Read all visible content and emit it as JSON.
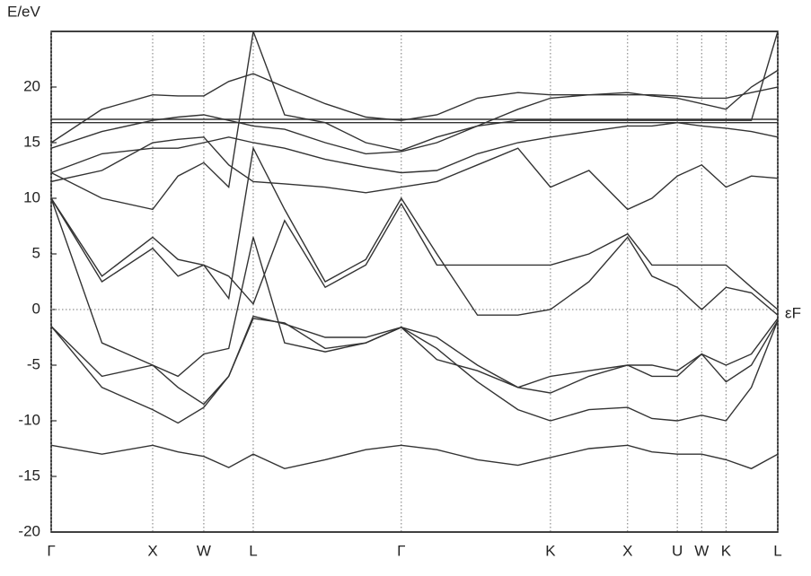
{
  "chart_data": {
    "type": "line",
    "y_label": "E/eV",
    "fermi_label": "εF",
    "fermi_level": 0,
    "x": [
      0,
      0.5,
      1,
      1.25,
      1.504,
      1.75,
      1.991,
      2.3,
      2.7,
      3.1,
      3.45,
      3.8,
      4.2,
      4.6,
      4.92,
      5.3,
      5.68,
      5.92,
      6.17,
      6.41,
      6.65,
      6.9,
      7.16
    ],
    "xlim": [
      0,
      7.16
    ],
    "xticks": [
      {
        "value": 0,
        "label": "Γ"
      },
      {
        "value": 1,
        "label": "X"
      },
      {
        "value": 1.504,
        "label": "W"
      },
      {
        "value": 1.991,
        "label": "L"
      },
      {
        "value": 3.45,
        "label": "Γ"
      },
      {
        "value": 4.92,
        "label": "K"
      },
      {
        "value": 5.68,
        "label": "X"
      },
      {
        "value": 6.17,
        "label": "U"
      },
      {
        "value": 6.41,
        "label": "W"
      },
      {
        "value": 6.65,
        "label": "K"
      },
      {
        "value": 7.16,
        "label": "L"
      }
    ],
    "ylim": [
      -20,
      25
    ],
    "yticks": [
      -20,
      -15,
      -10,
      -5,
      0,
      5,
      10,
      15,
      20
    ],
    "grid": true,
    "series": [
      {
        "color": "#333333",
        "values": [
          -12.2,
          -13,
          -12.2,
          -12.8,
          -13.2,
          -14.2,
          -13,
          -14.3,
          -13.5,
          -12.6,
          -12.2,
          -12.6,
          -13.5,
          -14,
          -13.3,
          -12.5,
          -12.2,
          -12.8,
          -13,
          -13,
          -13.5,
          -14.3,
          -13
        ]
      },
      {
        "color": "#333333",
        "values": [
          -1.5,
          -7,
          -9,
          -10.2,
          -8.8,
          -6,
          -0.8,
          -1.2,
          -3.5,
          -3,
          -1.6,
          -3.5,
          -6.5,
          -9,
          -10,
          -9,
          -8.8,
          -9.8,
          -10,
          -9.5,
          -10,
          -7,
          -1
        ]
      },
      {
        "color": "#333333",
        "values": [
          -1.5,
          -6,
          -5,
          -7,
          -8.5,
          -6,
          -0.6,
          -1.3,
          -2.5,
          -2.5,
          -1.6,
          -4.5,
          -5.5,
          -7,
          -7.5,
          -6,
          -5,
          -6,
          -6,
          -4,
          -6.5,
          -5,
          -1
        ]
      },
      {
        "color": "#333333",
        "values": [
          10,
          -3,
          -5,
          -6,
          -4,
          -3.5,
          6.5,
          -3,
          -3.8,
          -3,
          -1.6,
          -2.5,
          -5,
          -7,
          -6,
          -5.5,
          -5,
          -5,
          -5.5,
          -4,
          -5,
          -4,
          -0.8
        ]
      },
      {
        "color": "#333333",
        "values": [
          10,
          2.5,
          5.5,
          3,
          4,
          1,
          14.5,
          9,
          2.5,
          4.5,
          10,
          5,
          -0.5,
          -0.5,
          0,
          2.5,
          6.5,
          3,
          2,
          0,
          2,
          1.5,
          -0.5
        ]
      },
      {
        "color": "#333333",
        "values": [
          12.3,
          10,
          9,
          12,
          13.2,
          11,
          25,
          17.5,
          16.8,
          15,
          14.3,
          15.5,
          16.5,
          17,
          17,
          17,
          17,
          17,
          17,
          17,
          17,
          17,
          25
        ]
      },
      {
        "color": "#333333",
        "values": [
          12.3,
          14,
          14.5,
          14.5,
          15,
          15.5,
          15,
          14.5,
          13.5,
          12.8,
          12.3,
          12.5,
          14,
          15,
          15.5,
          16,
          16.5,
          16.5,
          16.8,
          16.5,
          16.3,
          16,
          15.5
        ]
      },
      {
        "color": "#333333",
        "values": [
          14.5,
          16,
          17,
          17.3,
          17.5,
          17,
          16.5,
          16.2,
          15,
          14,
          14.2,
          15,
          16.5,
          18,
          19,
          19.3,
          19.5,
          19.2,
          19,
          18.5,
          18,
          20,
          21.5
        ]
      },
      {
        "color": "#333333",
        "values": [
          15,
          18,
          19.3,
          19.2,
          19.2,
          20.5,
          21.2,
          20,
          18.5,
          17.3,
          17,
          17.5,
          19,
          19.5,
          19.3,
          19.3,
          19.3,
          19.3,
          19.2,
          19,
          19,
          19.5,
          20
        ]
      },
      {
        "color": "#333333",
        "values": [
          16.8,
          16.8,
          16.8,
          16.8,
          16.8,
          16.8,
          16.8,
          16.8,
          16.8,
          16.8,
          16.8,
          16.8,
          16.8,
          16.8,
          16.8,
          16.8,
          16.8,
          16.8,
          16.8,
          16.8,
          16.8,
          16.8,
          16.8
        ]
      },
      {
        "color": "#333333",
        "values": [
          17.1,
          17.1,
          17.1,
          17.1,
          17.1,
          17.1,
          17.1,
          17.1,
          17.1,
          17.1,
          17.1,
          17.1,
          17.1,
          17.1,
          17.1,
          17.1,
          17.1,
          17.1,
          17.1,
          17.1,
          17.1,
          17.1,
          17.1
        ]
      },
      {
        "color": "#333333",
        "values": [
          11.5,
          12.5,
          15,
          15.3,
          15.5,
          13,
          11.5,
          11.3,
          11,
          10.5,
          11,
          11.5,
          13,
          14.5,
          11,
          12.5,
          9,
          10,
          12,
          13,
          11,
          12,
          11.8
        ]
      },
      {
        "color": "#333333",
        "values": [
          10,
          3,
          6.5,
          4.5,
          4,
          3,
          0.5,
          8,
          2,
          4,
          9.5,
          4,
          4,
          4,
          4,
          5,
          6.8,
          4,
          4,
          4,
          4,
          2,
          0
        ]
      }
    ]
  }
}
